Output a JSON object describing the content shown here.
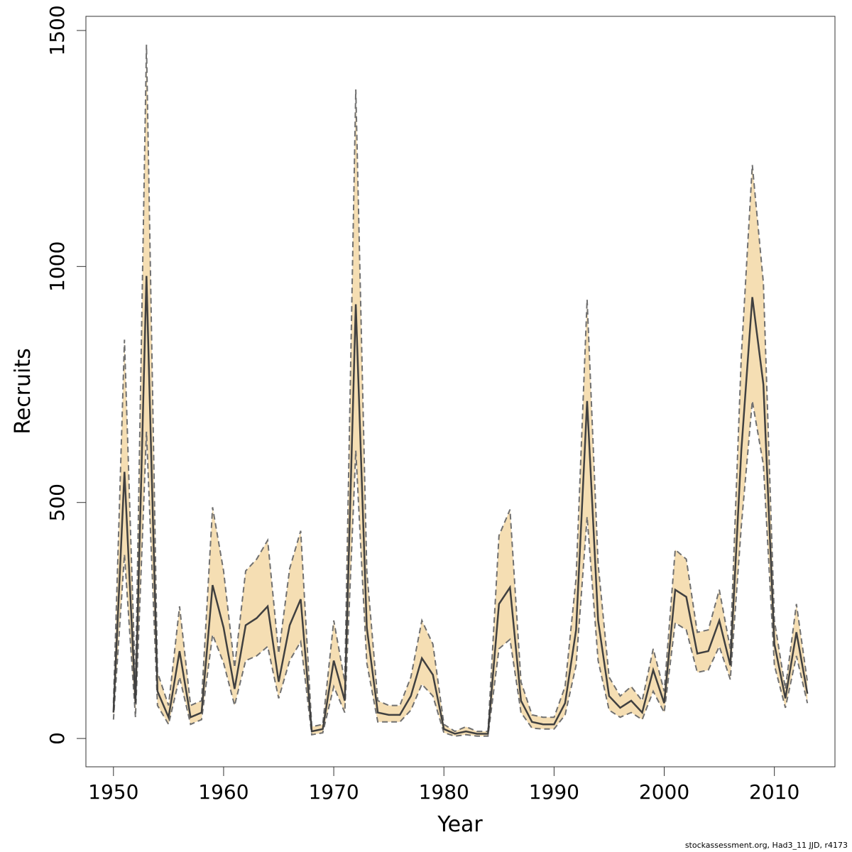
{
  "chart_data": {
    "type": "line",
    "title": "",
    "xlabel": "Year",
    "ylabel": "Recruits",
    "xlim": [
      1947.5,
      2015.5
    ],
    "ylim": [
      -60,
      1530
    ],
    "xticks": [
      1950,
      1960,
      1970,
      1980,
      1990,
      2000,
      2010
    ],
    "yticks": [
      0,
      500,
      1000,
      1500
    ],
    "grid": false,
    "legend": "none",
    "colors": {
      "band": "#f5deb3",
      "line": "#404040",
      "bounds": "#707070"
    },
    "x": [
      1950,
      1951,
      1952,
      1953,
      1954,
      1955,
      1956,
      1957,
      1958,
      1959,
      1960,
      1961,
      1962,
      1963,
      1964,
      1965,
      1966,
      1967,
      1968,
      1969,
      1970,
      1971,
      1972,
      1973,
      1974,
      1975,
      1976,
      1977,
      1978,
      1979,
      1980,
      1981,
      1982,
      1983,
      1984,
      1985,
      1986,
      1987,
      1988,
      1989,
      1990,
      1991,
      1992,
      1993,
      1994,
      1995,
      1996,
      1997,
      1998,
      1999,
      2000,
      2001,
      2002,
      2003,
      2004,
      2005,
      2006,
      2007,
      2008,
      2009,
      2010,
      2011,
      2012,
      2013
    ],
    "series": [
      {
        "role": "estimate",
        "values": [
          55,
          565,
          75,
          980,
          100,
          45,
          185,
          45,
          55,
          325,
          235,
          105,
          240,
          255,
          280,
          120,
          240,
          295,
          15,
          20,
          165,
          80,
          920,
          235,
          55,
          50,
          50,
          90,
          170,
          135,
          20,
          10,
          15,
          10,
          10,
          285,
          320,
          80,
          35,
          30,
          30,
          75,
          230,
          715,
          250,
          90,
          65,
          80,
          55,
          145,
          75,
          315,
          300,
          180,
          185,
          250,
          155,
          610,
          935,
          750,
          200,
          85,
          225,
          95
        ]
      },
      {
        "role": "lower",
        "values": [
          40,
          390,
          45,
          650,
          70,
          30,
          130,
          30,
          40,
          220,
          160,
          70,
          165,
          175,
          195,
          85,
          165,
          205,
          8,
          12,
          110,
          55,
          610,
          160,
          35,
          35,
          35,
          60,
          115,
          90,
          12,
          5,
          8,
          5,
          5,
          190,
          210,
          55,
          22,
          20,
          20,
          50,
          155,
          470,
          165,
          60,
          45,
          55,
          40,
          100,
          55,
          245,
          230,
          140,
          145,
          195,
          125,
          450,
          715,
          580,
          155,
          65,
          175,
          75
        ]
      },
      {
        "role": "upper",
        "values": [
          75,
          845,
          110,
          1470,
          140,
          70,
          280,
          70,
          80,
          490,
          355,
          150,
          355,
          380,
          420,
          180,
          360,
          440,
          25,
          30,
          250,
          120,
          1375,
          355,
          80,
          70,
          70,
          130,
          250,
          200,
          30,
          15,
          25,
          15,
          15,
          430,
          485,
          120,
          50,
          45,
          45,
          110,
          340,
          930,
          370,
          130,
          90,
          110,
          80,
          190,
          100,
          400,
          380,
          225,
          230,
          315,
          190,
          810,
          1215,
          965,
          250,
          105,
          285,
          120
        ]
      }
    ]
  },
  "footnote": "stockassessment.org, Had3_11 JJD, r4173"
}
